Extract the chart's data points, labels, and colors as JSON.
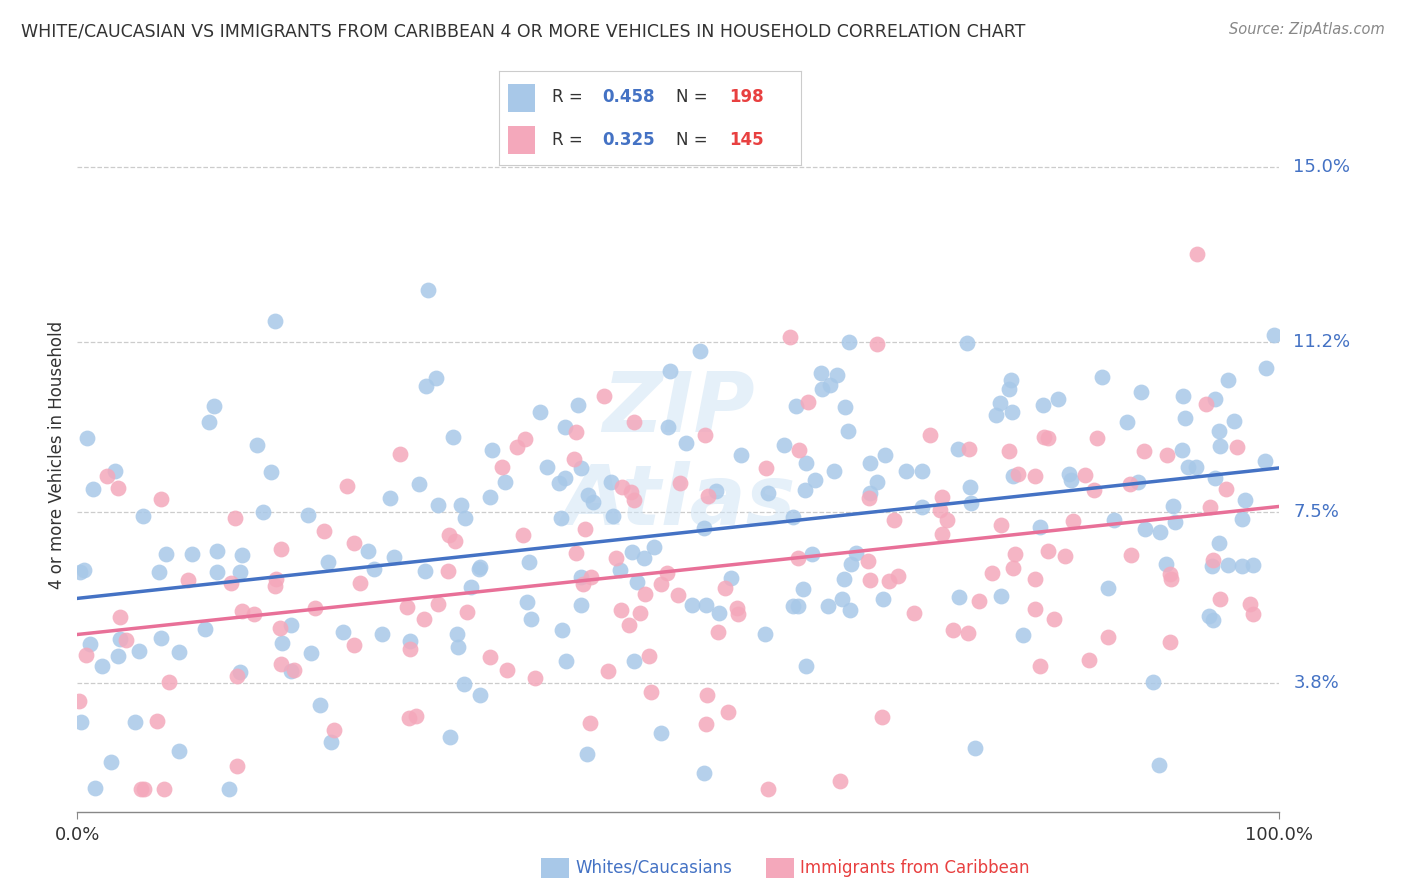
{
  "title": "WHITE/CAUCASIAN VS IMMIGRANTS FROM CARIBBEAN 4 OR MORE VEHICLES IN HOUSEHOLD CORRELATION CHART",
  "source": "Source: ZipAtlas.com",
  "ylabel": "4 or more Vehicles in Household",
  "legend_label1": "Whites/Caucasians",
  "legend_label2": "Immigrants from Caribbean",
  "R1": 0.458,
  "N1": 198,
  "R2": 0.325,
  "N2": 145,
  "color_blue": "#A8C8E8",
  "color_pink": "#F4A8BB",
  "line_color_blue": "#4472C4",
  "line_color_pink": "#E87098",
  "ytick_vals": [
    3.8,
    7.5,
    11.2,
    15.0
  ],
  "ytick_labels": [
    "3.8%",
    "7.5%",
    "11.2%",
    "15.0%"
  ],
  "ymin": 1.0,
  "ymax": 16.5,
  "xmin": 0.0,
  "xmax": 100.0,
  "blue_intercept": 5.5,
  "blue_slope": 0.035,
  "blue_noise": 2.2,
  "blue_n": 198,
  "blue_seed": 12,
  "pink_intercept": 4.8,
  "pink_slope": 0.028,
  "pink_noise": 2.1,
  "pink_n": 145,
  "pink_seed": 7,
  "watermark_text": "ZIP\nAtlas",
  "watermark_color": "#D0E4F5",
  "text_color": "#333333",
  "source_color": "#888888",
  "ytick_color": "#4472C4",
  "grid_color": "#CCCCCC",
  "spine_color": "#888888"
}
